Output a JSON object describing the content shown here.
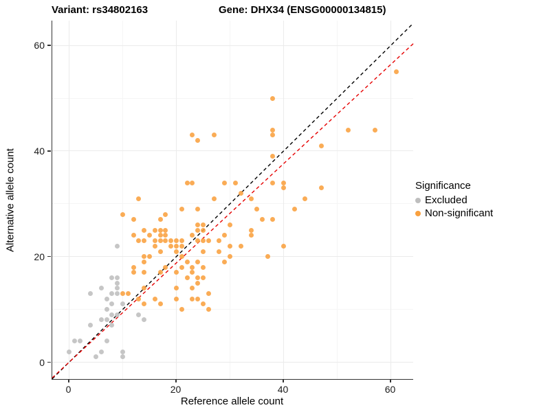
{
  "titles": {
    "variant": "Variant: rs34802163",
    "gene": "Gene: DHX34 (ENSG00000134815)"
  },
  "axes": {
    "x_label": "Reference allele count",
    "y_label": "Alternative allele count",
    "x_ticks": [
      0,
      20,
      40,
      60
    ],
    "y_ticks": [
      0,
      20,
      40,
      60
    ],
    "x_minor_ticks": [
      10,
      30,
      50
    ],
    "y_minor_ticks": [
      10,
      30,
      50
    ],
    "x_range": [
      -3.15,
      64.2
    ],
    "y_range": [
      -3.2,
      64.7
    ]
  },
  "legend": {
    "title": "Significance",
    "items": [
      {
        "label": "Excluded",
        "color": "#bebebe"
      },
      {
        "label": "Non-significant",
        "color": "#f9a03f"
      }
    ]
  },
  "colors": {
    "excluded": "#bebebe",
    "non_significant": "#f9a03f",
    "identity_line": "#000000",
    "fit_line": "#e60000",
    "grid_major": "#ebebeb",
    "grid_minor": "#f5f5f5",
    "axis": "#333333"
  },
  "chart_data": {
    "type": "scatter",
    "title": "Variant: rs34802163 — Gene: DHX34 (ENSG00000134815)",
    "xlabel": "Reference allele count",
    "ylabel": "Alternative allele count",
    "xlim": [
      -3.15,
      64.2
    ],
    "ylim": [
      -3.2,
      64.7
    ],
    "grid": true,
    "legend_position": "right",
    "series": [
      {
        "name": "Excluded",
        "color": "#bebebe",
        "points": [
          [
            0,
            2
          ],
          [
            1,
            4
          ],
          [
            2,
            4
          ],
          [
            5,
            1
          ],
          [
            6,
            2
          ],
          [
            7,
            4
          ],
          [
            10,
            1
          ],
          [
            10,
            2
          ],
          [
            4,
            7
          ],
          [
            6,
            8
          ],
          [
            7,
            8
          ],
          [
            8,
            7
          ],
          [
            8,
            9
          ],
          [
            9,
            9
          ],
          [
            7,
            10
          ],
          [
            8,
            11
          ],
          [
            10,
            11
          ],
          [
            7,
            12
          ],
          [
            4,
            13
          ],
          [
            8,
            13
          ],
          [
            9,
            13
          ],
          [
            6,
            14
          ],
          [
            9,
            14
          ],
          [
            9,
            15
          ],
          [
            8,
            16
          ],
          [
            9,
            16
          ],
          [
            13,
            9
          ],
          [
            14,
            8
          ],
          [
            9,
            22
          ]
        ]
      },
      {
        "name": "Non-significant",
        "color": "#f9a03f",
        "points": [
          [
            38,
            50
          ],
          [
            23,
            43
          ],
          [
            24,
            42
          ],
          [
            27,
            43
          ],
          [
            38,
            44
          ],
          [
            38,
            43
          ],
          [
            38,
            39
          ],
          [
            61,
            55
          ],
          [
            52,
            44
          ],
          [
            57,
            44
          ],
          [
            47,
            41
          ],
          [
            47,
            33
          ],
          [
            44,
            31
          ],
          [
            42,
            29
          ],
          [
            22,
            34
          ],
          [
            23,
            34
          ],
          [
            29,
            34
          ],
          [
            31,
            34
          ],
          [
            38,
            34
          ],
          [
            40,
            34
          ],
          [
            40,
            33
          ],
          [
            32,
            32
          ],
          [
            34,
            31
          ],
          [
            27,
            31
          ],
          [
            13,
            31
          ],
          [
            21,
            29
          ],
          [
            24,
            29
          ],
          [
            35,
            29
          ],
          [
            10,
            28
          ],
          [
            18,
            28
          ],
          [
            12,
            27
          ],
          [
            17,
            27
          ],
          [
            36,
            27
          ],
          [
            38,
            27
          ],
          [
            24,
            26
          ],
          [
            25,
            26
          ],
          [
            30,
            26
          ],
          [
            14,
            25
          ],
          [
            16,
            25
          ],
          [
            17,
            25
          ],
          [
            18,
            25
          ],
          [
            24,
            25
          ],
          [
            25,
            25
          ],
          [
            34,
            25
          ],
          [
            12,
            24
          ],
          [
            15,
            24
          ],
          [
            17,
            24
          ],
          [
            18,
            24
          ],
          [
            23,
            24
          ],
          [
            29,
            24
          ],
          [
            34,
            24
          ],
          [
            13,
            23
          ],
          [
            14,
            23
          ],
          [
            16,
            23
          ],
          [
            17,
            23
          ],
          [
            18,
            23
          ],
          [
            19,
            23
          ],
          [
            20,
            23
          ],
          [
            21,
            23
          ],
          [
            24,
            23
          ],
          [
            25,
            23
          ],
          [
            26,
            23
          ],
          [
            28,
            23
          ],
          [
            16,
            22
          ],
          [
            19,
            22
          ],
          [
            20,
            22
          ],
          [
            21,
            22
          ],
          [
            30,
            22
          ],
          [
            32,
            22
          ],
          [
            40,
            22
          ],
          [
            17,
            21
          ],
          [
            20,
            21
          ],
          [
            25,
            21
          ],
          [
            28,
            21
          ],
          [
            14,
            20
          ],
          [
            15,
            20
          ],
          [
            21,
            20
          ],
          [
            30,
            20
          ],
          [
            37,
            20
          ],
          [
            14,
            19
          ],
          [
            22,
            19
          ],
          [
            24,
            19
          ],
          [
            29,
            19
          ],
          [
            12,
            18
          ],
          [
            18,
            18
          ],
          [
            21,
            18
          ],
          [
            23,
            18
          ],
          [
            25,
            18
          ],
          [
            12,
            17
          ],
          [
            14,
            17
          ],
          [
            17,
            17
          ],
          [
            20,
            17
          ],
          [
            23,
            17
          ],
          [
            22,
            16
          ],
          [
            24,
            16
          ],
          [
            25,
            16
          ],
          [
            24,
            15
          ],
          [
            14,
            14
          ],
          [
            20,
            14
          ],
          [
            23,
            14
          ],
          [
            26,
            13
          ],
          [
            10,
            13
          ],
          [
            11,
            13
          ],
          [
            13,
            12
          ],
          [
            16,
            12
          ],
          [
            20,
            12
          ],
          [
            23,
            12
          ],
          [
            24,
            12
          ],
          [
            14,
            11
          ],
          [
            17,
            11
          ],
          [
            25,
            11
          ],
          [
            21,
            10
          ],
          [
            26,
            10
          ]
        ]
      }
    ],
    "lines": [
      {
        "name": "identity",
        "color": "#000000",
        "style": "dashed",
        "slope": 1,
        "intercept": 0
      },
      {
        "name": "fit",
        "color": "#e60000",
        "style": "dashed",
        "slope": 0.94,
        "intercept": 0
      }
    ]
  }
}
